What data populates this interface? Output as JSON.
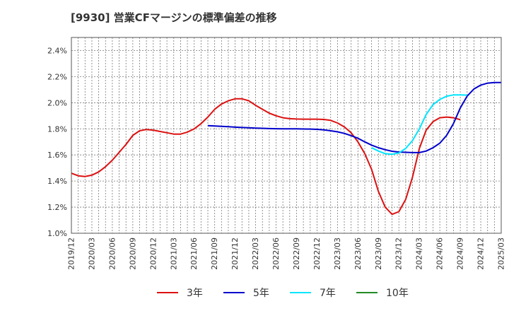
{
  "chart_data": {
    "type": "line",
    "title": "[9930]  営業CFマージンの標準偏差の推移",
    "xlabel": "",
    "ylabel": "",
    "ylim": [
      1.0,
      2.5
    ],
    "y_ticks": [
      1.0,
      1.2,
      1.4,
      1.6,
      1.8,
      2.0,
      2.2,
      2.4
    ],
    "y_tick_labels": [
      "1.0%",
      "1.2%",
      "1.4%",
      "1.6%",
      "1.8%",
      "2.0%",
      "2.2%",
      "2.4%"
    ],
    "x_tick_labels": [
      "2019/12",
      "2020/03",
      "2020/06",
      "2020/09",
      "2020/12",
      "2021/03",
      "2021/06",
      "2021/09",
      "2021/12",
      "2022/03",
      "2022/06",
      "2022/09",
      "2022/12",
      "2023/03",
      "2023/06",
      "2023/09",
      "2023/12",
      "2024/03",
      "2024/06",
      "2024/09",
      "2024/12",
      "2025/03"
    ],
    "grid": true,
    "legend_position": "bottom",
    "series": [
      {
        "name": "3年",
        "color": "#dd1111",
        "start": "2019/12",
        "values": [
          1.46,
          1.44,
          1.435,
          1.445,
          1.47,
          1.51,
          1.56,
          1.62,
          1.68,
          1.75,
          1.785,
          1.795,
          1.79,
          1.78,
          1.77,
          1.76,
          1.76,
          1.775,
          1.8,
          1.84,
          1.89,
          1.95,
          1.99,
          2.015,
          2.03,
          2.03,
          2.015,
          1.98,
          1.95,
          1.92,
          1.9,
          1.885,
          1.878,
          1.875,
          1.874,
          1.874,
          1.874,
          1.872,
          1.865,
          1.845,
          1.815,
          1.77,
          1.7,
          1.61,
          1.49,
          1.32,
          1.2,
          1.145,
          1.165,
          1.26,
          1.43,
          1.65,
          1.79,
          1.855,
          1.885,
          1.89,
          1.885,
          1.87
        ]
      },
      {
        "name": "5年",
        "color": "#0000cc",
        "start": "2021/08",
        "values": [
          1.825,
          1.822,
          1.819,
          1.816,
          1.813,
          1.81,
          1.808,
          1.806,
          1.804,
          1.802,
          1.801,
          1.8,
          1.8,
          1.8,
          1.799,
          1.798,
          1.796,
          1.792,
          1.785,
          1.777,
          1.765,
          1.748,
          1.728,
          1.7,
          1.675,
          1.655,
          1.64,
          1.628,
          1.622,
          1.62,
          1.618,
          1.618,
          1.63,
          1.655,
          1.69,
          1.75,
          1.84,
          1.96,
          2.05,
          2.105,
          2.135,
          2.15,
          2.155,
          2.155
        ]
      },
      {
        "name": "7年",
        "color": "#00e5ff",
        "start": "2023/08",
        "values": [
          1.655,
          1.63,
          1.61,
          1.605,
          1.615,
          1.65,
          1.71,
          1.8,
          1.91,
          1.985,
          2.025,
          2.05,
          2.06,
          2.06,
          2.058
        ]
      },
      {
        "name": "10年",
        "color": "#228b22",
        "start": "",
        "values": []
      }
    ]
  }
}
